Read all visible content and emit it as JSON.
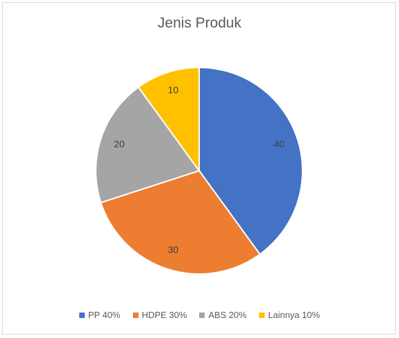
{
  "chart_data": {
    "type": "pie",
    "title": "Jenis Produk",
    "categories": [
      "PP",
      "HDPE",
      "ABS",
      "Lainnya"
    ],
    "values": [
      40,
      30,
      20,
      10
    ],
    "data_labels": [
      "40",
      "30",
      "20",
      "10"
    ],
    "legend": [
      "PP 40%",
      "HDPE 30%",
      "ABS 20%",
      "Lainnya 10%"
    ],
    "colors": [
      "#4472c4",
      "#ed7d31",
      "#a5a5a5",
      "#ffc000"
    ],
    "legend_position": "bottom"
  }
}
